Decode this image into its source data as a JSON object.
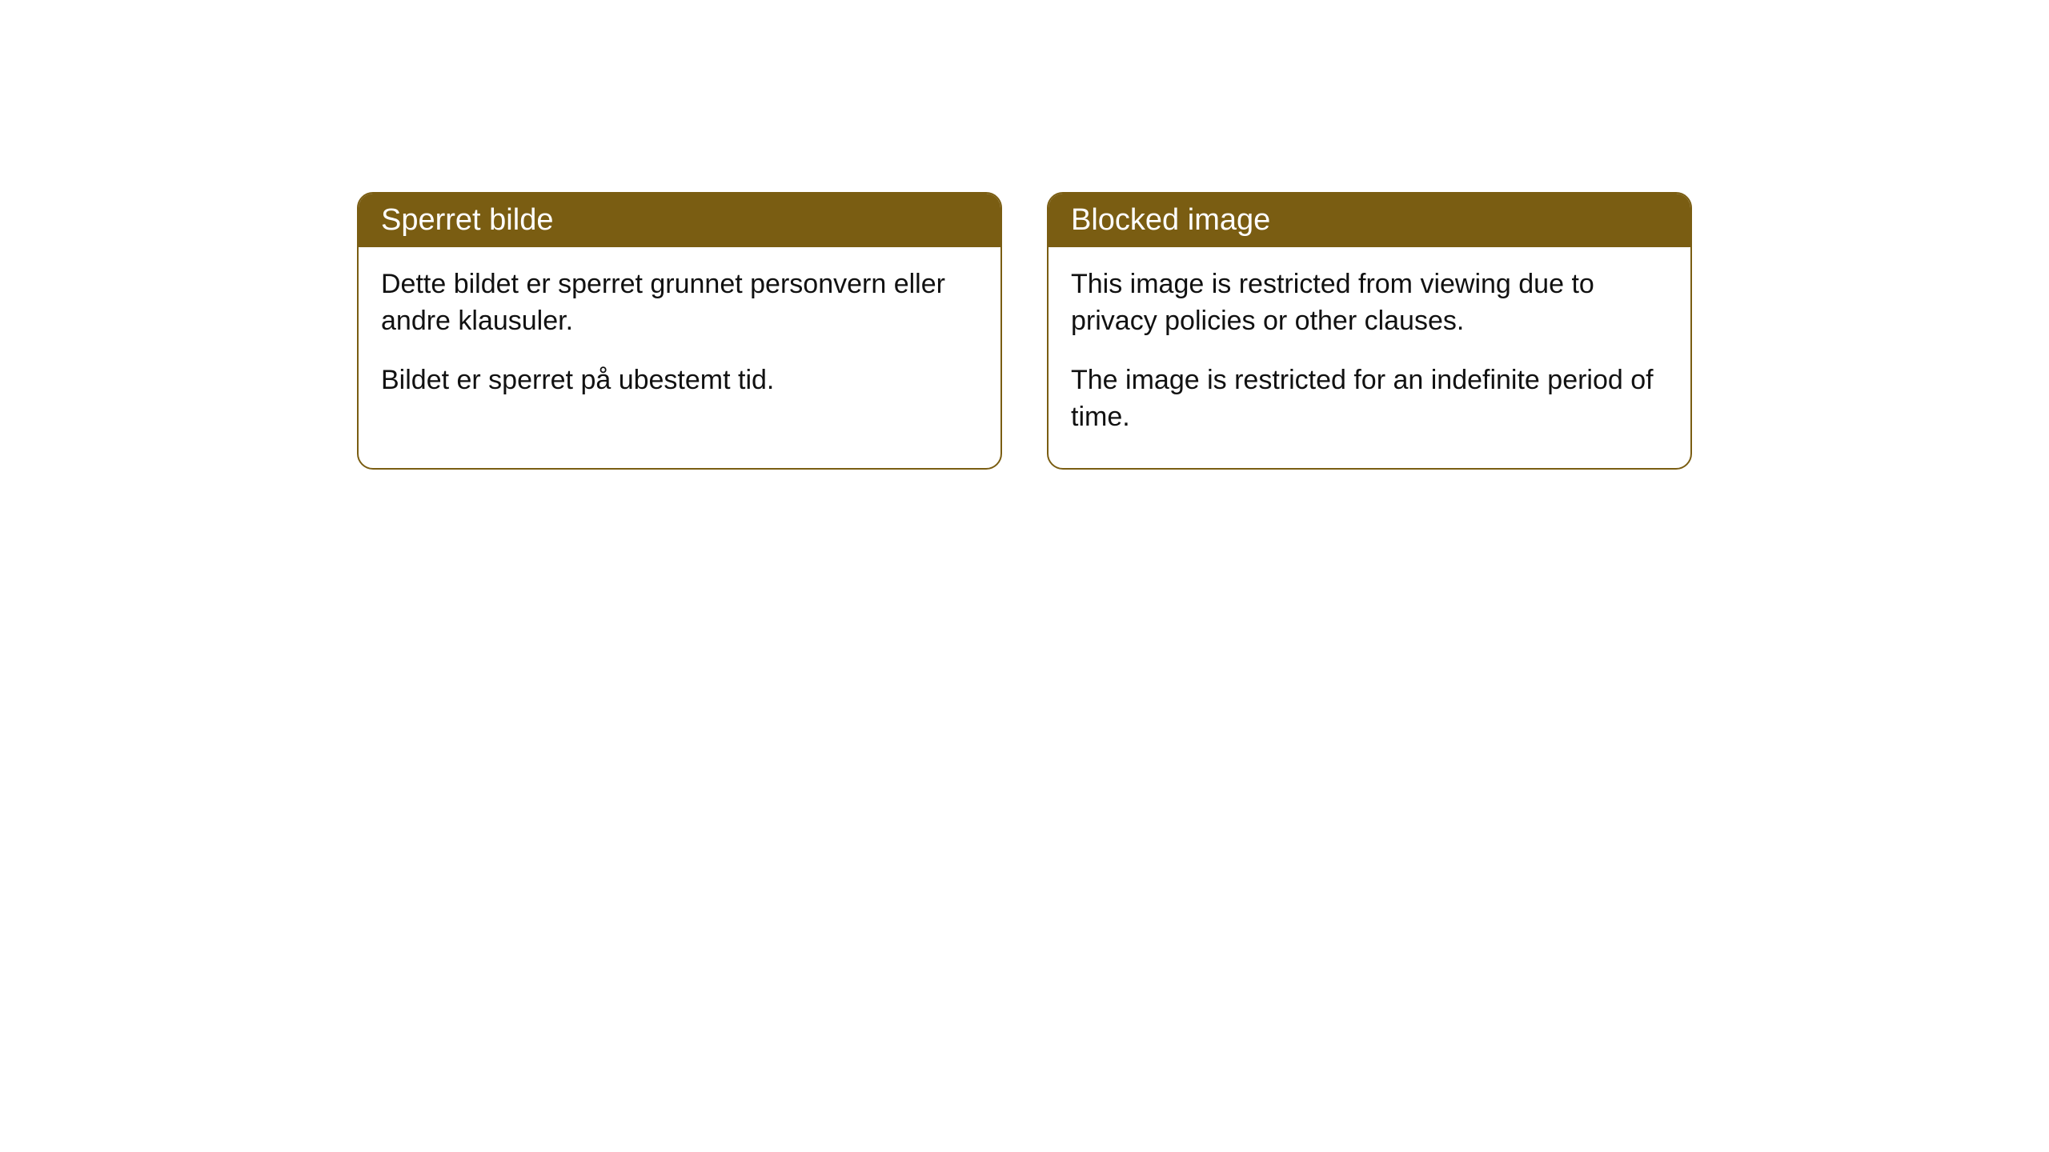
{
  "styling": {
    "headerBackground": "#7a5d12",
    "headerTextColor": "#ffffff",
    "borderColor": "#7a5d12",
    "bodyBackground": "#ffffff",
    "bodyTextColor": "#111111",
    "borderRadius": 20,
    "headerFontSize": 38,
    "bodyFontSize": 34
  },
  "cards": {
    "norwegian": {
      "title": "Sperret bilde",
      "paragraph1": "Dette bildet er sperret grunnet personvern eller andre klausuler.",
      "paragraph2": "Bildet er sperret på ubestemt tid."
    },
    "english": {
      "title": "Blocked image",
      "paragraph1": "This image is restricted from viewing due to privacy policies or other clauses.",
      "paragraph2": "The image is restricted for an indefinite period of time."
    }
  }
}
